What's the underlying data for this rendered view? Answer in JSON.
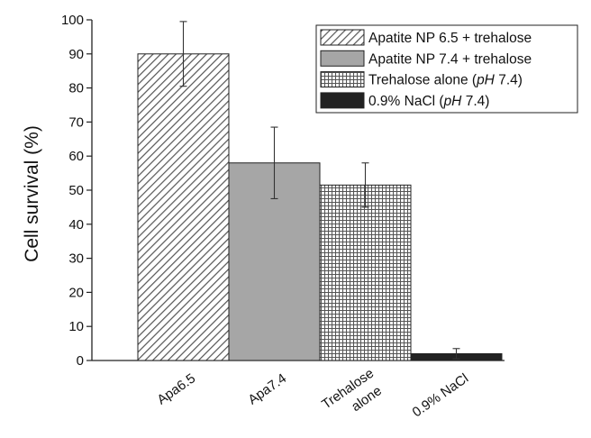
{
  "chart_data": {
    "type": "bar",
    "title": "",
    "xlabel": "",
    "ylabel": "Cell survival (%)",
    "ylim": [
      0,
      100
    ],
    "yticks": [
      0,
      10,
      20,
      30,
      40,
      50,
      60,
      70,
      80,
      90,
      100
    ],
    "categories": [
      [
        "Apa6.5"
      ],
      [
        "Apa7.4"
      ],
      [
        "Trehalose",
        "alone"
      ],
      [
        "0.9% NaCl"
      ]
    ],
    "values": [
      90,
      58,
      51.5,
      2
    ],
    "errors": [
      9.5,
      10.5,
      6.5,
      1.5
    ],
    "grid": false,
    "legend_position": "top-right",
    "legend": [
      {
        "label": "Apatite NP 6.5 + trehalose",
        "pattern": "diagonal-hatch"
      },
      {
        "label": "Apatite NP 7.4 + trehalose",
        "pattern": "solid-gray"
      },
      {
        "label": "Trehalose alone (pH 7.4)",
        "parts": [
          {
            "text": "Trehalose alone ("
          },
          {
            "text": "pH",
            "italic": true
          },
          {
            "text": " 7.4)"
          }
        ],
        "pattern": "crosshatch"
      },
      {
        "label": "0.9% NaCl (pH 7.4)",
        "parts": [
          {
            "text": "0.9% NaCl ("
          },
          {
            "text": "pH",
            "italic": true
          },
          {
            "text": " 7.4)"
          }
        ],
        "pattern": "solid-black"
      }
    ],
    "colors": {
      "gray_fill": "#a6a6a6",
      "black_fill": "#222222",
      "hatch_line": "#555555"
    }
  }
}
